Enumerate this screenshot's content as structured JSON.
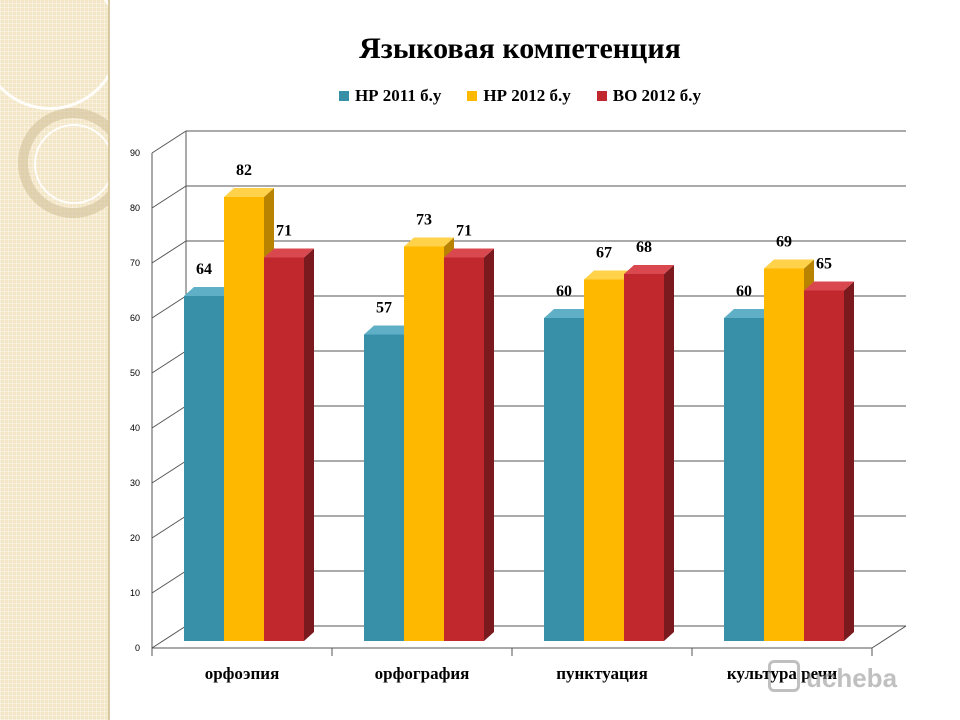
{
  "chart_data": {
    "type": "bar",
    "title": "Языковая компетенция",
    "categories": [
      "орфоэпия",
      "орфография",
      "пунктуация",
      "культура речи"
    ],
    "series": [
      {
        "name": "НР 2011 б.у",
        "values": [
          64,
          57,
          60,
          60
        ],
        "color": "#3890a8",
        "side_color": "#24667a",
        "top_color": "#5fb0c6"
      },
      {
        "name": "НР 2012 б.у",
        "values": [
          82,
          73,
          67,
          69
        ],
        "color": "#ffb800",
        "side_color": "#b88300",
        "top_color": "#ffd24a"
      },
      {
        "name": "ВО 2012 б.у",
        "values": [
          71,
          71,
          68,
          65
        ],
        "color": "#c0282e",
        "side_color": "#7a1a1e",
        "top_color": "#d9484e"
      }
    ],
    "yticks": [
      0,
      10,
      20,
      30,
      40,
      50,
      60,
      70,
      80,
      90
    ],
    "ylim": [
      0,
      90
    ],
    "grid": true,
    "legend_position": "top",
    "data_labels": true,
    "three_d": true
  },
  "watermark": {
    "text": "ucheba",
    "logo_icon": "book-icon"
  }
}
